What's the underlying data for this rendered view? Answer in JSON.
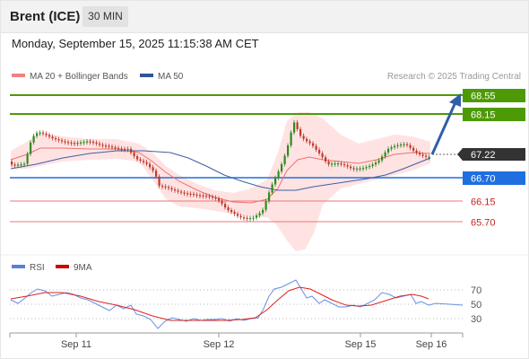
{
  "header": {
    "title": "Brent (ICE)",
    "timeframe": "30 MIN"
  },
  "datetime": "Monday, September 15, 2025 11:15:38 AM CET",
  "legend": {
    "items": [
      {
        "label": "MA 20 + Bollinger Bands",
        "color": "#f28080"
      },
      {
        "label": "MA 50",
        "color": "#2f5597"
      }
    ],
    "credit": "Research © 2025 Trading Central"
  },
  "levels": [
    {
      "value": "68.55",
      "type": "resistance",
      "color": "#4d9a06"
    },
    {
      "value": "68.15",
      "type": "resistance",
      "color": "#4d9a06"
    },
    {
      "value": "67.22",
      "type": "last",
      "color": "#333333"
    },
    {
      "value": "66.70",
      "type": "pivot",
      "color": "#1f6fe0"
    },
    {
      "value": "66.15",
      "type": "support",
      "color": "#cc2222"
    },
    {
      "value": "65.70",
      "type": "support",
      "color": "#cc2222"
    }
  ],
  "rsi": {
    "legend": [
      {
        "label": "RSI",
        "color": "#5a7fd6"
      },
      {
        "label": "9MA",
        "color": "#cc0000"
      }
    ],
    "levels": [
      "70",
      "50",
      "30"
    ]
  },
  "x_axis": [
    "Sep 11",
    "Sep 12",
    "Sep 15",
    "Sep 16"
  ],
  "colors": {
    "up": "#2e8b1e",
    "down": "#c0392b",
    "band": "#ffd6d6"
  }
}
